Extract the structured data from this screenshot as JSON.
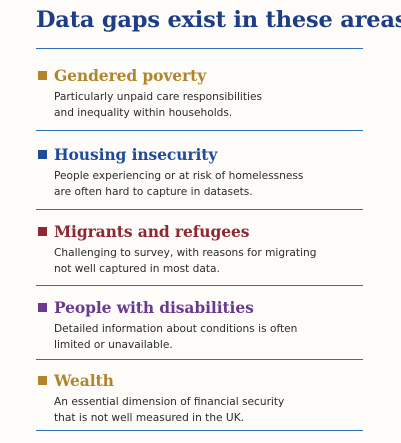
{
  "colors": {
    "title": "#1d3d87",
    "rule": "#2d72b6",
    "text": "#2b2b2b"
  },
  "title": "Data gaps exist in these areas:",
  "sections": [
    {
      "heading": "Gendered poverty",
      "color": "#b0852c",
      "lines": [
        "Particularly unpaid care responsibilities",
        "and inequality within households."
      ]
    },
    {
      "heading": "Housing insecurity",
      "color": "#1f4c9a",
      "lines": [
        "People experiencing or at risk of homelessness",
        "are often hard to capture in datasets."
      ]
    },
    {
      "heading": "Migrants and refugees",
      "color": "#8e2832",
      "lines": [
        "Challenging to survey, with reasons for migrating",
        "not well captured in most data."
      ]
    },
    {
      "heading": "People with disabilities",
      "color": "#6a3a8e",
      "lines": [
        "Detailed information about conditions is often",
        "limited or unavailable."
      ]
    },
    {
      "heading": "Wealth",
      "color": "#b0852c",
      "lines": [
        "An essential dimension of financial security",
        "that is not well measured in the UK."
      ]
    }
  ]
}
